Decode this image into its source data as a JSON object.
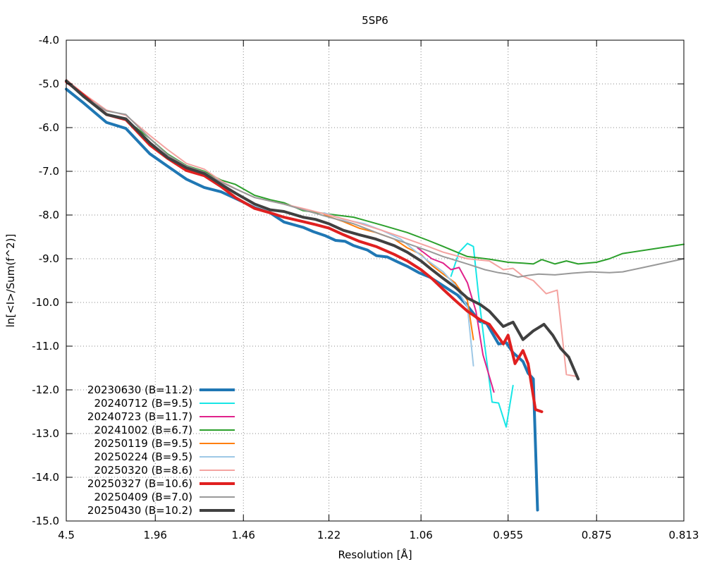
{
  "chart_data": {
    "type": "line",
    "title": "5SP6",
    "xlabel": "Resolution [Å]",
    "ylabel": "ln[<I>/Sum(f^2)]",
    "x_scale": "1/d^2",
    "xlim": [
      4.5,
      0.813
    ],
    "ylim": [
      -15.0,
      -4.0
    ],
    "x_ticks": [
      "4.5",
      "1.96",
      "1.46",
      "1.22",
      "1.06",
      "0.955",
      "0.875",
      "0.813"
    ],
    "y_ticks": [
      "-4.0",
      "-5.0",
      "-6.0",
      "-7.0",
      "-8.0",
      "-9.0",
      "-10.0",
      "-11.0",
      "-12.0",
      "-13.0",
      "-14.0",
      "-15.0"
    ],
    "grid": true,
    "legend_position": "bottom-left",
    "series": [
      {
        "name": "20230630 (B=11.2)",
        "color": "#1f77b4",
        "width": 4,
        "x": [
          4.5,
          3.34,
          2.63,
          2.29,
          2.01,
          1.86,
          1.73,
          1.63,
          1.55,
          1.49,
          1.42,
          1.37,
          1.33,
          1.28,
          1.255,
          1.229,
          1.206,
          1.187,
          1.17,
          1.145,
          1.129,
          1.111,
          1.095,
          1.079,
          1.063,
          1.048,
          1.036,
          1.023,
          1.012,
          1.002,
          0.995,
          0.986,
          0.978,
          0.965,
          0.957,
          0.95,
          0.94,
          0.935,
          0.93,
          0.926
        ],
        "y": [
          -5.12,
          -5.43,
          -5.88,
          -6.02,
          -6.6,
          -6.88,
          -7.18,
          -7.37,
          -7.47,
          -7.62,
          -7.83,
          -7.95,
          -8.16,
          -8.28,
          -8.38,
          -8.47,
          -8.58,
          -8.6,
          -8.7,
          -8.8,
          -8.93,
          -8.96,
          -9.07,
          -9.18,
          -9.32,
          -9.42,
          -9.55,
          -9.7,
          -9.83,
          -10.03,
          -10.2,
          -10.43,
          -10.48,
          -10.95,
          -10.92,
          -11.15,
          -11.35,
          -11.62,
          -11.75,
          -14.75
        ]
      },
      {
        "name": "20240712 (B=9.5)",
        "color": "#17e6e6",
        "width": 2,
        "x": [
          1.02,
          1.01,
          1.0,
          0.993,
          0.987,
          0.98,
          0.972,
          0.965,
          0.957,
          0.95
        ],
        "y": [
          -9.4,
          -8.85,
          -8.65,
          -8.72,
          -9.85,
          -11.0,
          -12.28,
          -12.3,
          -12.85,
          -11.9
        ]
      },
      {
        "name": "20240723 (B=11.7)",
        "color": "#e0228b",
        "width": 2,
        "x": [
          1.065,
          1.045,
          1.03,
          1.02,
          1.01,
          1.0,
          0.99,
          0.982,
          0.97
        ],
        "y": [
          -8.75,
          -9.0,
          -9.1,
          -9.25,
          -9.2,
          -9.55,
          -10.2,
          -11.2,
          -12.05
        ]
      },
      {
        "name": "20241002 (B=6.7)",
        "color": "#2ca02c",
        "width": 2,
        "x": [
          4.5,
          3.34,
          2.63,
          2.29,
          2.01,
          1.86,
          1.73,
          1.63,
          1.55,
          1.49,
          1.42,
          1.37,
          1.33,
          1.28,
          1.22,
          1.17,
          1.12,
          1.08,
          1.05,
          1.03,
          1.0,
          0.975,
          0.955,
          0.94,
          0.93,
          0.922,
          0.91,
          0.9,
          0.89,
          0.875,
          0.865,
          0.855,
          0.813
        ],
        "y": [
          -4.93,
          -5.26,
          -5.68,
          -5.82,
          -6.25,
          -6.6,
          -6.87,
          -7.0,
          -7.2,
          -7.3,
          -7.55,
          -7.65,
          -7.72,
          -7.9,
          -7.98,
          -8.05,
          -8.23,
          -8.4,
          -8.58,
          -8.72,
          -8.95,
          -9.01,
          -9.08,
          -9.1,
          -9.12,
          -9.02,
          -9.12,
          -9.05,
          -9.12,
          -9.08,
          -9.0,
          -8.88,
          -8.67
        ]
      },
      {
        "name": "20250119 (B=9.5)",
        "color": "#ff7f0e",
        "width": 2,
        "x": [
          1.23,
          1.19,
          1.16,
          1.13,
          1.1,
          1.08,
          1.06,
          1.045,
          1.03,
          1.015,
          1.0,
          0.993
        ],
        "y": [
          -8.0,
          -8.15,
          -8.3,
          -8.4,
          -8.55,
          -8.75,
          -8.9,
          -9.15,
          -9.35,
          -9.55,
          -9.95,
          -10.85
        ]
      },
      {
        "name": "20250224 (B=9.5)",
        "color": "#9ec8e6",
        "width": 2,
        "x": [
          1.23,
          1.19,
          1.15,
          1.12,
          1.09,
          1.07,
          1.05,
          1.03,
          1.015,
          1.0,
          0.993
        ],
        "y": [
          -7.95,
          -8.1,
          -8.2,
          -8.35,
          -8.55,
          -8.8,
          -9.05,
          -9.3,
          -9.6,
          -10.1,
          -11.45
        ]
      },
      {
        "name": "20250320 (B=8.6)",
        "color": "#f4a3a0",
        "width": 2,
        "x": [
          4.5,
          3.34,
          2.63,
          2.29,
          2.01,
          1.86,
          1.73,
          1.63,
          1.55,
          1.49,
          1.42,
          1.37,
          1.33,
          1.28,
          1.22,
          1.17,
          1.12,
          1.08,
          1.05,
          1.03,
          1.0,
          0.975,
          0.96,
          0.95,
          0.94,
          0.93,
          0.918,
          0.908,
          0.9,
          0.89
        ],
        "y": [
          -4.9,
          -5.22,
          -5.6,
          -5.72,
          -6.18,
          -6.5,
          -6.82,
          -6.95,
          -7.22,
          -7.4,
          -7.6,
          -7.68,
          -7.75,
          -7.85,
          -8.0,
          -8.15,
          -8.35,
          -8.55,
          -8.72,
          -8.85,
          -9.0,
          -9.05,
          -9.25,
          -9.22,
          -9.4,
          -9.5,
          -9.8,
          -9.72,
          -11.65,
          -11.7
        ]
      },
      {
        "name": "20250327 (B=10.6)",
        "color": "#e02020",
        "width": 4,
        "x": [
          4.5,
          3.34,
          2.63,
          2.29,
          2.01,
          1.86,
          1.73,
          1.63,
          1.55,
          1.49,
          1.42,
          1.37,
          1.33,
          1.28,
          1.25,
          1.22,
          1.19,
          1.16,
          1.13,
          1.1,
          1.08,
          1.06,
          1.045,
          1.03,
          1.015,
          1.0,
          0.985,
          0.975,
          0.96,
          0.955,
          0.948,
          0.94,
          0.935,
          0.928,
          0.922
        ],
        "y": [
          -4.95,
          -5.25,
          -5.7,
          -5.82,
          -6.4,
          -6.7,
          -6.98,
          -7.1,
          -7.35,
          -7.6,
          -7.85,
          -7.95,
          -8.05,
          -8.15,
          -8.22,
          -8.3,
          -8.45,
          -8.6,
          -8.72,
          -8.9,
          -9.05,
          -9.25,
          -9.45,
          -9.7,
          -9.95,
          -10.2,
          -10.4,
          -10.5,
          -10.95,
          -10.75,
          -11.4,
          -11.1,
          -11.4,
          -12.45,
          -12.5
        ]
      },
      {
        "name": "20250409 (B=7.0)",
        "color": "#999999",
        "width": 2,
        "x": [
          4.5,
          3.34,
          2.63,
          2.29,
          2.01,
          1.86,
          1.73,
          1.63,
          1.55,
          1.49,
          1.42,
          1.37,
          1.33,
          1.28,
          1.22,
          1.17,
          1.12,
          1.08,
          1.05,
          1.03,
          1.0,
          0.98,
          0.965,
          0.955,
          0.945,
          0.935,
          0.925,
          0.91,
          0.895,
          0.88,
          0.865,
          0.855,
          0.84,
          0.813
        ],
        "y": [
          -4.92,
          -5.28,
          -5.62,
          -5.7,
          -6.25,
          -6.62,
          -6.88,
          -7.02,
          -7.25,
          -7.4,
          -7.6,
          -7.68,
          -7.75,
          -7.88,
          -8.05,
          -8.2,
          -8.45,
          -8.65,
          -8.82,
          -8.95,
          -9.12,
          -9.25,
          -9.32,
          -9.35,
          -9.42,
          -9.38,
          -9.35,
          -9.37,
          -9.33,
          -9.3,
          -9.32,
          -9.3,
          -9.2,
          -9.0
        ]
      },
      {
        "name": "20250430 (B=10.2)",
        "color": "#404040",
        "width": 4,
        "x": [
          4.5,
          3.34,
          2.63,
          2.29,
          2.01,
          1.86,
          1.73,
          1.63,
          1.55,
          1.49,
          1.42,
          1.37,
          1.33,
          1.28,
          1.25,
          1.22,
          1.19,
          1.16,
          1.13,
          1.1,
          1.08,
          1.06,
          1.045,
          1.03,
          1.015,
          1.0,
          0.985,
          0.975,
          0.96,
          0.95,
          0.94,
          0.93,
          0.92,
          0.912,
          0.905,
          0.898,
          0.89
        ],
        "y": [
          -4.93,
          -5.28,
          -5.7,
          -5.8,
          -6.35,
          -6.68,
          -6.92,
          -7.05,
          -7.3,
          -7.5,
          -7.75,
          -7.88,
          -7.92,
          -8.05,
          -8.1,
          -8.2,
          -8.35,
          -8.45,
          -8.55,
          -8.7,
          -8.85,
          -9.05,
          -9.25,
          -9.45,
          -9.65,
          -9.9,
          -10.05,
          -10.2,
          -10.55,
          -10.45,
          -10.85,
          -10.65,
          -10.5,
          -10.75,
          -11.05,
          -11.25,
          -11.75
        ]
      }
    ]
  }
}
